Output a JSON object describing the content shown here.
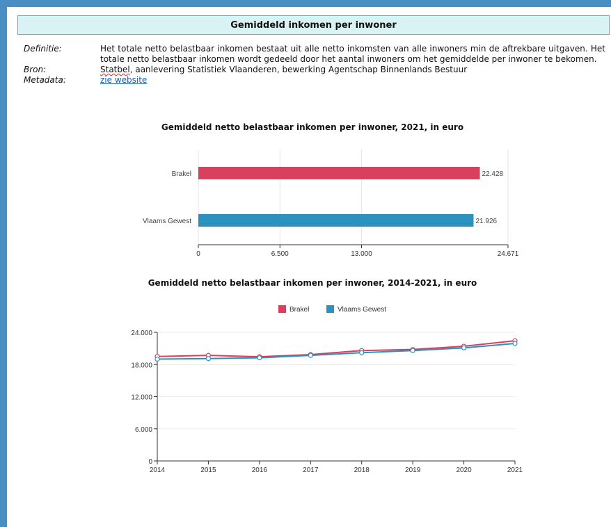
{
  "header": {
    "title": "Gemiddeld inkomen per inwoner"
  },
  "meta": {
    "definitie_label": "Definitie:",
    "definitie_text": "Het totale netto belastbaar inkomen bestaat uit alle netto inkomsten van alle inwoners min de aftrekbare uitgaven. Het totale netto belastbaar inkomen wordt gedeeld door het aantal inwoners om het gemiddelde per inwoner te bekomen.",
    "bron_label": "Bron:",
    "bron_source": "Statbel",
    "bron_text": ", aanlevering Statistiek Vlaanderen, bewerking Agentschap Binnenlands Bestuur",
    "metadata_label": "Metadata:",
    "metadata_link": "zie website"
  },
  "colors": {
    "brakel": "#d9405e",
    "vlaams": "#2b92c0"
  },
  "chart_data": [
    {
      "type": "bar",
      "orientation": "horizontal",
      "title": "Gemiddeld netto belastbaar inkomen per inwoner, 2021, in euro",
      "categories": [
        "Brakel",
        "Vlaams Gewest"
      ],
      "values": [
        22428,
        21926
      ],
      "value_labels": [
        "22.428",
        "21.926"
      ],
      "xlim": [
        0,
        24671
      ],
      "ticks": [
        0,
        6500,
        13000,
        24671
      ],
      "tick_labels": [
        "0",
        "6.500",
        "13.000",
        "24.671"
      ],
      "grid": true
    },
    {
      "type": "line",
      "title": "Gemiddeld netto belastbaar inkomen per inwoner, 2014-2021, in euro",
      "x": [
        "2014",
        "2015",
        "2016",
        "2017",
        "2018",
        "2019",
        "2020",
        "2021"
      ],
      "series": [
        {
          "name": "Brakel",
          "values": [
            19500,
            19700,
            19450,
            19850,
            20600,
            20800,
            21400,
            22428
          ]
        },
        {
          "name": "Vlaams Gewest",
          "values": [
            19000,
            19100,
            19250,
            19700,
            20200,
            20600,
            21100,
            21926
          ]
        }
      ],
      "ylim": [
        0,
        24000
      ],
      "yticks": [
        0,
        6000,
        12000,
        18000,
        24000
      ],
      "ytick_labels": [
        "0",
        "6.000",
        "12.000",
        "18.000",
        "24.000"
      ],
      "legend": "top-center",
      "grid": true
    }
  ]
}
